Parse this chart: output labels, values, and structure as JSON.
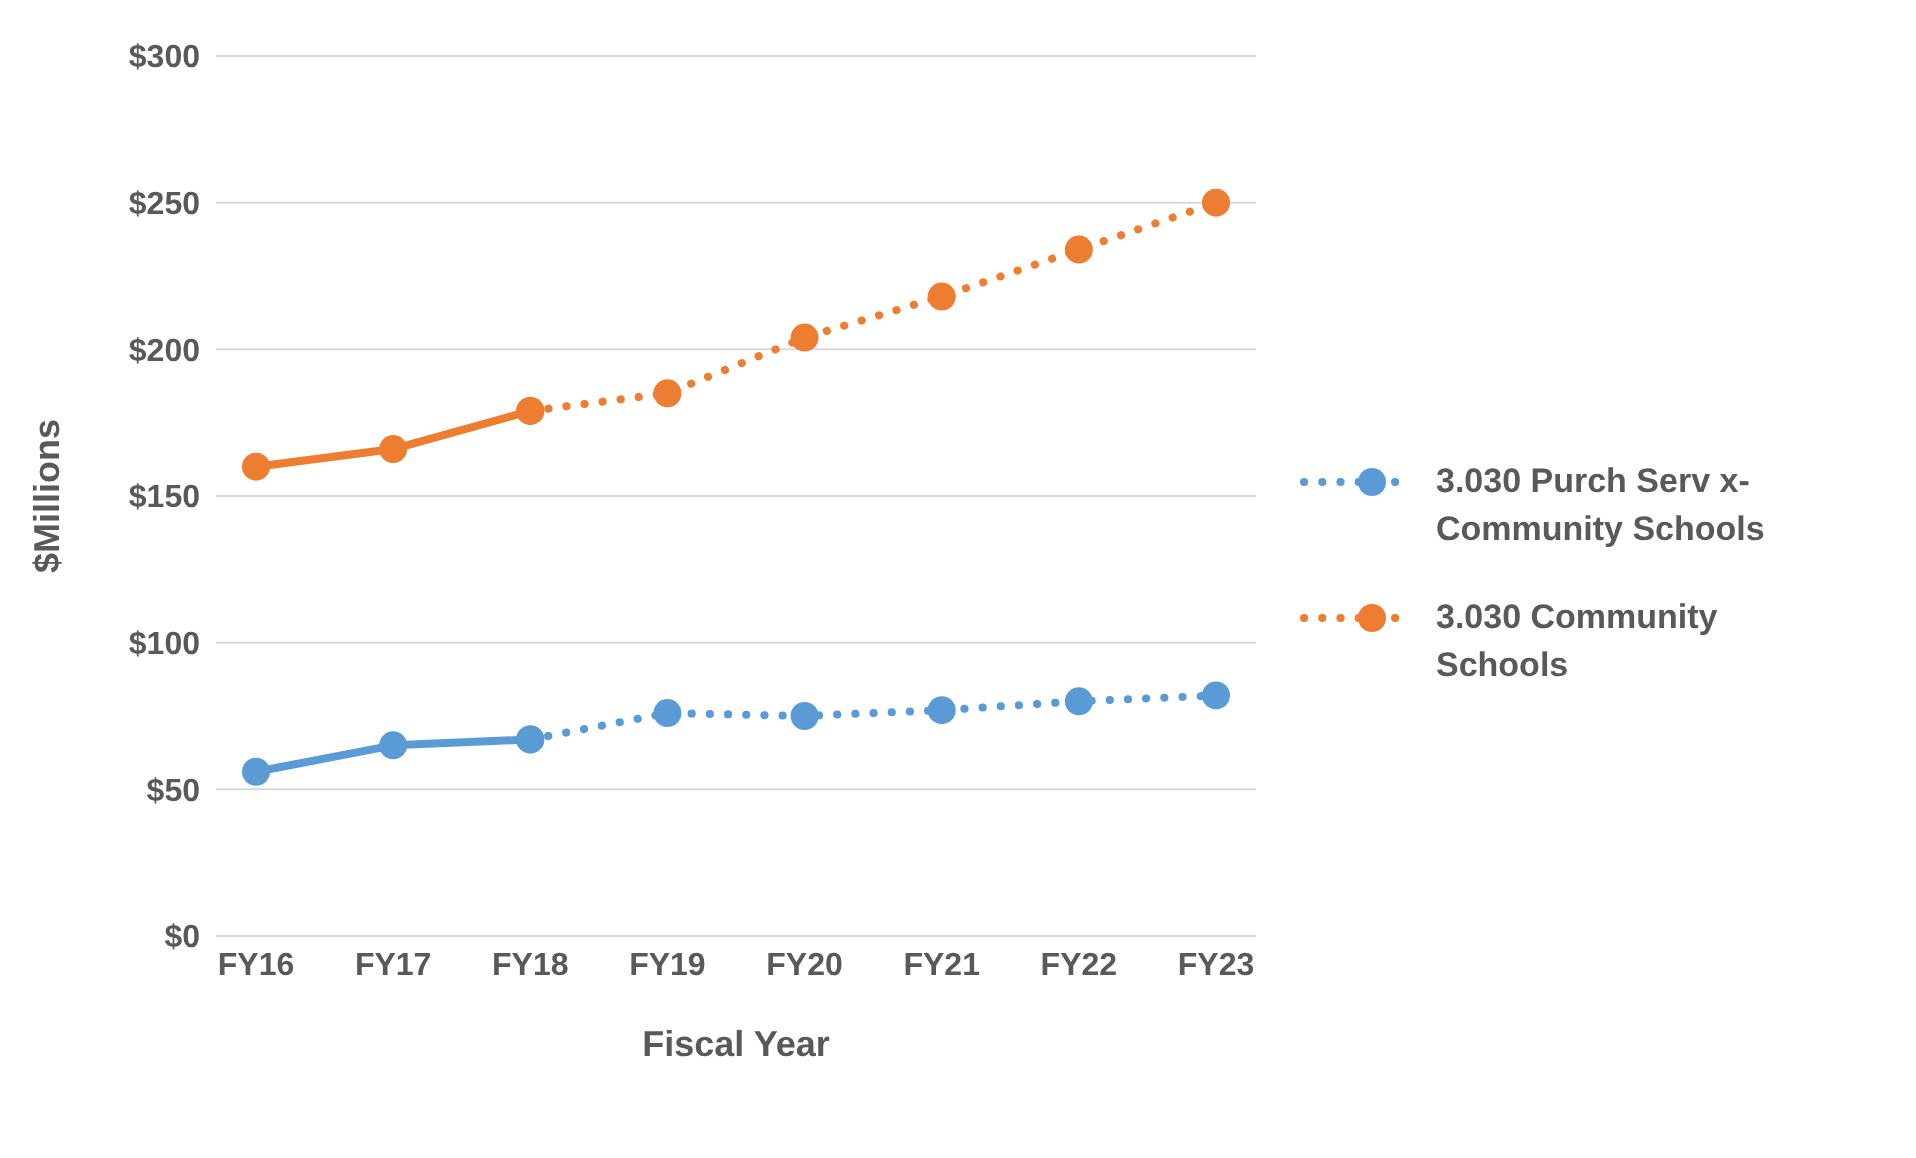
{
  "chart_data": {
    "type": "line",
    "xlabel": "Fiscal Year",
    "ylabel": "$Millions",
    "categories": [
      "FY16",
      "FY17",
      "FY18",
      "FY19",
      "FY20",
      "FY21",
      "FY22",
      "FY23"
    ],
    "ylim": [
      0,
      300
    ],
    "yticks": [
      {
        "value": 0,
        "label": "$0"
      },
      {
        "value": 50,
        "label": "$50"
      },
      {
        "value": 100,
        "label": "$100"
      },
      {
        "value": 150,
        "label": "$150"
      },
      {
        "value": 200,
        "label": "$200"
      },
      {
        "value": 250,
        "label": "$250"
      },
      {
        "value": 300,
        "label": "$300"
      }
    ],
    "grid": "y",
    "legend": "right",
    "marker": "circle",
    "series": [
      {
        "color": "#5b9bd5",
        "line_style": "solid",
        "values": [
          56,
          65,
          67,
          null,
          null,
          null,
          null,
          null
        ]
      },
      {
        "color": "#ed7d31",
        "line_style": "solid",
        "values": [
          160,
          166,
          179,
          null,
          null,
          null,
          null,
          null
        ]
      },
      {
        "name": "3.030 Purch Serv x-Community Schools",
        "color": "#5b9bd5",
        "line_style": "dotted",
        "values": [
          null,
          null,
          67,
          76,
          75,
          77,
          80,
          82
        ]
      },
      {
        "name": "3.030 Community Schools",
        "color": "#ed7d31",
        "line_style": "dotted",
        "values": [
          null,
          null,
          179,
          185,
          204,
          218,
          234,
          250
        ]
      }
    ]
  }
}
